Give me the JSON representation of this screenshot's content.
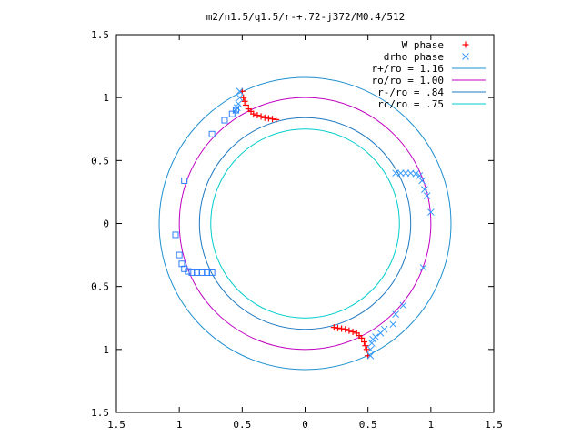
{
  "chart_data": {
    "type": "scatter",
    "title": "m2/n1.5/q1.5/r-+.72-j372/M0.4/512",
    "xlabel": "",
    "ylabel": "",
    "xlim": [
      -1.5,
      1.5
    ],
    "ylim": [
      -1.5,
      1.5
    ],
    "x_ticks": [
      -1.5,
      -1,
      -0.5,
      0,
      0.5,
      1,
      1.5
    ],
    "y_ticks": [
      -1.5,
      -1,
      -0.5,
      0,
      0.5,
      1,
      1.5
    ],
    "x_tick_labels": [
      "1.5",
      "1",
      "0.5",
      "0",
      "0.5",
      "1",
      "1.5"
    ],
    "y_tick_labels": [
      "1.5",
      "1",
      "0.5",
      "0",
      "0.5",
      "1",
      "1.5"
    ],
    "grid": false,
    "legend_position": "top-right",
    "colors": {
      "w_phase": "#ff0000",
      "drho_phase": "#3399ff",
      "r_plus": "#1e90d0",
      "r_o": "#c000c0",
      "r_minus": "#1e78c0",
      "r_c": "#00cccc",
      "square_markers": "#2f7fff"
    },
    "circles": [
      {
        "name": "r+/ro = 1.16",
        "radius": 1.16
      },
      {
        "name": "ro/ro = 1.00",
        "radius": 1.0
      },
      {
        "name": "r-/ro = .84",
        "radius": 0.84
      },
      {
        "name": "rc/ro = .75",
        "radius": 0.75
      }
    ],
    "series": [
      {
        "name": "W phase",
        "marker": "plus",
        "points": [
          [
            -0.5,
            1.05
          ],
          [
            -0.49,
            1.0
          ],
          [
            -0.48,
            0.97
          ],
          [
            -0.47,
            0.94
          ],
          [
            -0.45,
            0.91
          ],
          [
            -0.43,
            0.89
          ],
          [
            -0.41,
            0.87
          ],
          [
            -0.38,
            0.86
          ],
          [
            -0.35,
            0.85
          ],
          [
            -0.32,
            0.84
          ],
          [
            -0.29,
            0.835
          ],
          [
            -0.26,
            0.83
          ],
          [
            -0.23,
            0.825
          ],
          [
            0.5,
            -1.05
          ],
          [
            0.49,
            -1.0
          ],
          [
            0.48,
            -0.97
          ],
          [
            0.47,
            -0.94
          ],
          [
            0.45,
            -0.91
          ],
          [
            0.43,
            -0.89
          ],
          [
            0.41,
            -0.87
          ],
          [
            0.38,
            -0.86
          ],
          [
            0.35,
            -0.85
          ],
          [
            0.32,
            -0.84
          ],
          [
            0.29,
            -0.835
          ],
          [
            0.26,
            -0.83
          ],
          [
            0.23,
            -0.825
          ]
        ]
      },
      {
        "name": "drho phase",
        "marker": "cross",
        "points": [
          [
            -0.52,
            1.05
          ],
          [
            -0.52,
            1.0
          ],
          [
            -0.53,
            0.95
          ],
          [
            -0.54,
            0.92
          ],
          [
            -0.55,
            0.9
          ],
          [
            0.72,
            0.4
          ],
          [
            0.76,
            0.4
          ],
          [
            0.8,
            0.4
          ],
          [
            0.84,
            0.4
          ],
          [
            0.88,
            0.395
          ],
          [
            0.91,
            0.38
          ],
          [
            0.93,
            0.34
          ],
          [
            0.95,
            0.27
          ],
          [
            0.97,
            0.22
          ],
          [
            1.0,
            0.09
          ],
          [
            0.94,
            -0.35
          ],
          [
            0.52,
            -1.05
          ],
          [
            0.52,
            -1.0
          ],
          [
            0.53,
            -0.95
          ],
          [
            0.54,
            -0.92
          ],
          [
            0.56,
            -0.9
          ],
          [
            0.6,
            -0.87
          ],
          [
            0.63,
            -0.84
          ],
          [
            0.7,
            -0.8
          ],
          [
            0.72,
            -0.72
          ],
          [
            0.78,
            -0.65
          ]
        ]
      },
      {
        "name": "",
        "marker": "square",
        "points": [
          [
            -0.55,
            0.9
          ],
          [
            -0.58,
            0.87
          ],
          [
            -0.64,
            0.82
          ],
          [
            -0.74,
            0.71
          ],
          [
            -0.96,
            0.34
          ],
          [
            -1.03,
            -0.09
          ],
          [
            -1.0,
            -0.25
          ],
          [
            -0.98,
            -0.32
          ],
          [
            -0.96,
            -0.36
          ],
          [
            -0.93,
            -0.38
          ],
          [
            -0.9,
            -0.39
          ],
          [
            -0.86,
            -0.39
          ],
          [
            -0.82,
            -0.39
          ],
          [
            -0.78,
            -0.39
          ],
          [
            -0.74,
            -0.39
          ]
        ]
      }
    ]
  }
}
